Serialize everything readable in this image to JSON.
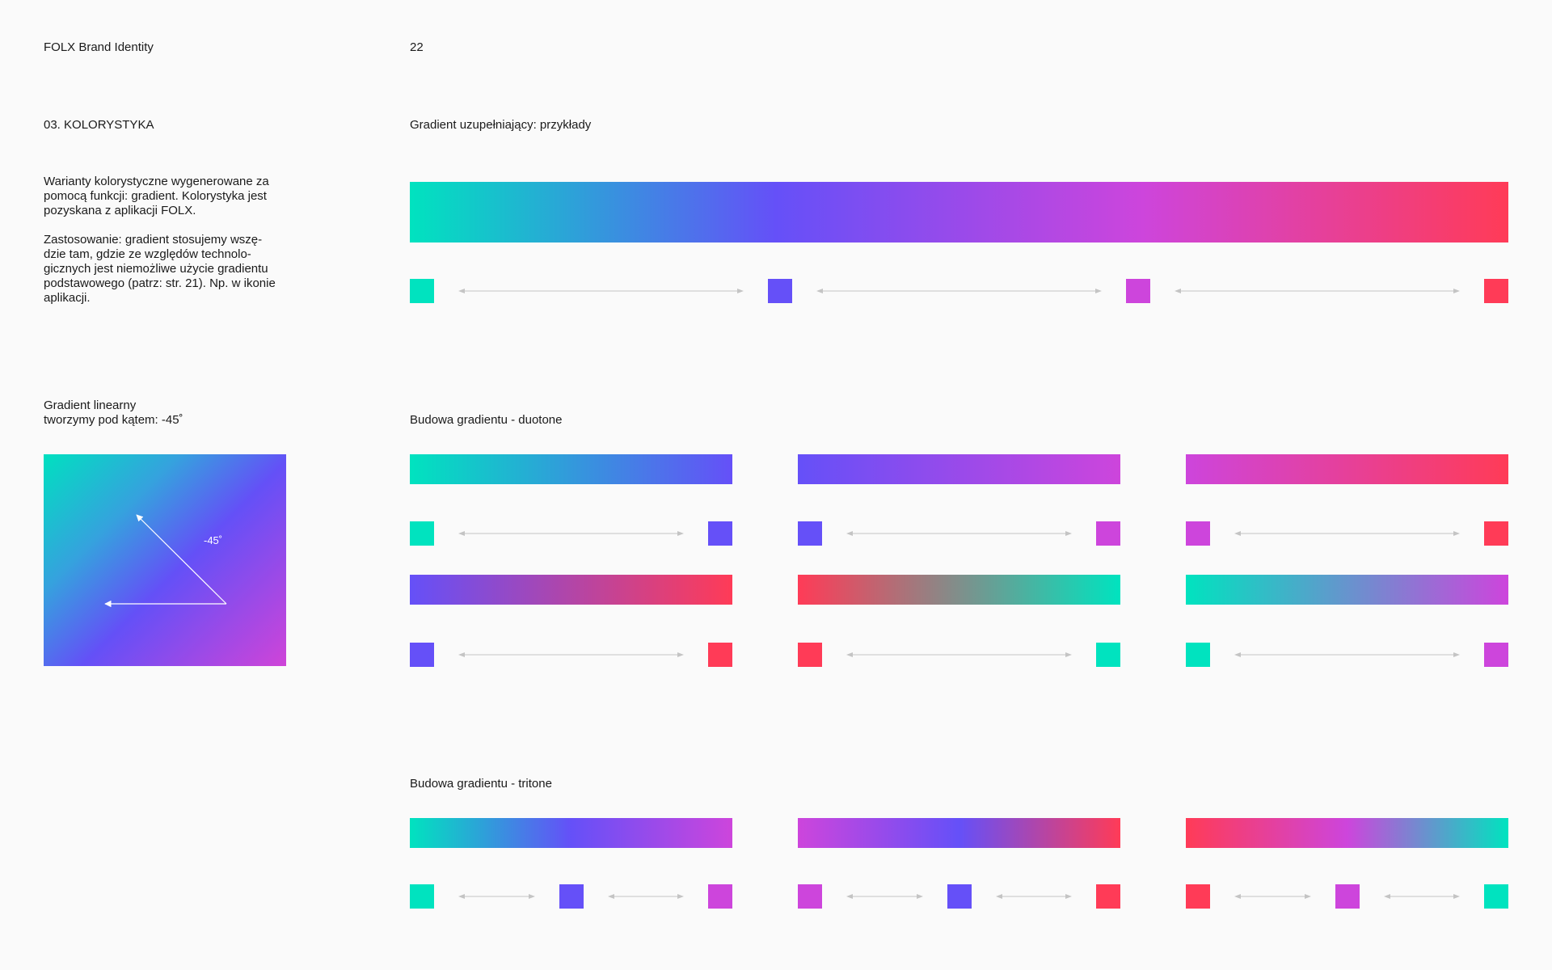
{
  "header": {
    "brand": "FOLX Brand Identity",
    "page_number": "22"
  },
  "sidebar": {
    "section_title": "03. KOLORYSTYKA",
    "intro": "Warianty kolorystyczne wygenerowane za\npomocą funkcji: gradient. Kolorystyka jest\npozyskana z aplikacji FOLX.",
    "usage": "Zastosowanie: gradient stosujemy wszę-\ndzie tam, gdzie ze względów technolo-\ngicznych jest niemożliwe użycie gradientu\npodstawowego (patrz: str. 21). Np. w ikonie\naplikacji.",
    "linear_title": "Gradient linearny\ntworzymy pod kątem: -45˚",
    "angle_label": "-45˚"
  },
  "colors": {
    "teal": "#00e3bf",
    "violet": "#6550f8",
    "magenta": "#cd45dc",
    "red": "#ff3b57"
  },
  "sections": {
    "examples_title": "Gradient uzupełniający: przykłady",
    "duotone_title": "Budowa gradientu - duotone",
    "tritone_title": "Budowa gradientu - tritone"
  },
  "gradients": {
    "examples": [
      "teal",
      "violet",
      "magenta",
      "red"
    ],
    "duotone": [
      [
        "teal",
        "violet"
      ],
      [
        "violet",
        "magenta"
      ],
      [
        "magenta",
        "red"
      ],
      [
        "violet",
        "red"
      ],
      [
        "red",
        "teal"
      ],
      [
        "teal",
        "magenta"
      ]
    ],
    "tritone": [
      [
        "teal",
        "violet",
        "magenta"
      ],
      [
        "magenta",
        "violet",
        "red"
      ],
      [
        "red",
        "magenta",
        "teal"
      ]
    ]
  }
}
